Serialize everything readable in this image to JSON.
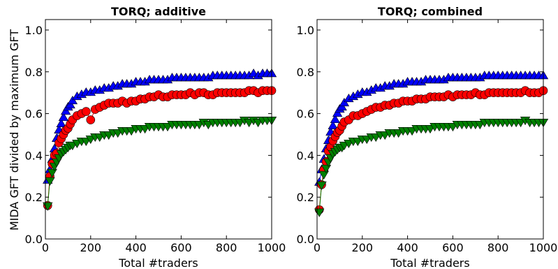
{
  "figure": {
    "ylabel": "MIDA GFT divided by maximum GFT"
  },
  "chart_data": [
    {
      "type": "scatter",
      "title": "TORQ; additive",
      "xlabel": "Total #traders",
      "xlim": [
        0,
        1000
      ],
      "ylim": [
        0.0,
        1.05
      ],
      "xticks": [
        0,
        200,
        400,
        600,
        800,
        1000
      ],
      "yticks": [
        0.0,
        0.2,
        0.4,
        0.6,
        0.8,
        1.0
      ],
      "grid": false,
      "legend": "none",
      "series": [
        {
          "color": "#0000ff",
          "marker": "triangle-up",
          "x": [
            10,
            20,
            30,
            40,
            50,
            60,
            70,
            80,
            90,
            100,
            110,
            120,
            140,
            160,
            180,
            200,
            220,
            240,
            260,
            280,
            300,
            320,
            340,
            360,
            380,
            400,
            420,
            440,
            460,
            480,
            500,
            520,
            540,
            560,
            580,
            600,
            620,
            640,
            660,
            680,
            700,
            720,
            740,
            760,
            780,
            800,
            820,
            840,
            860,
            880,
            900,
            920,
            940,
            960,
            980,
            1000
          ],
          "y": [
            0.28,
            0.33,
            0.38,
            0.43,
            0.48,
            0.52,
            0.55,
            0.58,
            0.61,
            0.63,
            0.64,
            0.66,
            0.68,
            0.69,
            0.7,
            0.7,
            0.71,
            0.71,
            0.72,
            0.72,
            0.73,
            0.73,
            0.74,
            0.74,
            0.74,
            0.75,
            0.75,
            0.75,
            0.76,
            0.76,
            0.76,
            0.76,
            0.76,
            0.77,
            0.77,
            0.77,
            0.77,
            0.77,
            0.77,
            0.77,
            0.77,
            0.77,
            0.78,
            0.78,
            0.78,
            0.78,
            0.78,
            0.78,
            0.78,
            0.78,
            0.78,
            0.79,
            0.78,
            0.79,
            0.79,
            0.79
          ]
        },
        {
          "color": "#ff0000",
          "marker": "circle",
          "x": [
            10,
            20,
            30,
            40,
            50,
            60,
            70,
            80,
            90,
            100,
            110,
            120,
            140,
            160,
            180,
            200,
            220,
            240,
            260,
            280,
            300,
            320,
            340,
            360,
            380,
            400,
            420,
            440,
            460,
            480,
            500,
            520,
            540,
            560,
            580,
            600,
            620,
            640,
            660,
            680,
            700,
            720,
            740,
            760,
            780,
            800,
            820,
            840,
            860,
            880,
            900,
            920,
            940,
            960,
            980,
            1000
          ],
          "y": [
            0.16,
            0.3,
            0.36,
            0.4,
            0.41,
            0.46,
            0.48,
            0.5,
            0.52,
            0.53,
            0.55,
            0.57,
            0.59,
            0.6,
            0.61,
            0.57,
            0.62,
            0.63,
            0.64,
            0.65,
            0.65,
            0.65,
            0.66,
            0.65,
            0.66,
            0.66,
            0.67,
            0.67,
            0.68,
            0.68,
            0.69,
            0.68,
            0.68,
            0.69,
            0.69,
            0.69,
            0.69,
            0.7,
            0.69,
            0.7,
            0.7,
            0.69,
            0.69,
            0.7,
            0.7,
            0.7,
            0.7,
            0.7,
            0.7,
            0.7,
            0.71,
            0.71,
            0.7,
            0.71,
            0.71,
            0.71
          ]
        },
        {
          "color": "#008000",
          "marker": "triangle-down",
          "x": [
            10,
            20,
            30,
            40,
            50,
            60,
            70,
            80,
            90,
            100,
            110,
            120,
            140,
            160,
            180,
            200,
            220,
            240,
            260,
            280,
            300,
            320,
            340,
            360,
            380,
            400,
            420,
            440,
            460,
            480,
            500,
            520,
            540,
            560,
            580,
            600,
            620,
            640,
            660,
            680,
            700,
            720,
            740,
            760,
            780,
            800,
            820,
            840,
            860,
            880,
            900,
            920,
            940,
            960,
            980,
            1000
          ],
          "y": [
            0.16,
            0.28,
            0.32,
            0.35,
            0.37,
            0.39,
            0.41,
            0.42,
            0.43,
            0.44,
            0.45,
            0.45,
            0.46,
            0.47,
            0.47,
            0.48,
            0.49,
            0.49,
            0.5,
            0.5,
            0.51,
            0.51,
            0.52,
            0.52,
            0.52,
            0.53,
            0.53,
            0.53,
            0.54,
            0.54,
            0.54,
            0.54,
            0.54,
            0.55,
            0.55,
            0.55,
            0.55,
            0.55,
            0.55,
            0.55,
            0.56,
            0.55,
            0.56,
            0.56,
            0.56,
            0.56,
            0.56,
            0.56,
            0.56,
            0.57,
            0.56,
            0.57,
            0.56,
            0.57,
            0.57,
            0.57
          ]
        }
      ]
    },
    {
      "type": "scatter",
      "title": "TORQ; combined",
      "xlabel": "Total #traders",
      "xlim": [
        0,
        1000
      ],
      "ylim": [
        0.0,
        1.05
      ],
      "xticks": [
        0,
        200,
        400,
        600,
        800,
        1000
      ],
      "yticks": [
        0.0,
        0.2,
        0.4,
        0.6,
        0.8,
        1.0
      ],
      "grid": false,
      "legend": "none",
      "series": [
        {
          "color": "#0000ff",
          "marker": "triangle-up",
          "x": [
            10,
            20,
            30,
            40,
            50,
            60,
            70,
            80,
            90,
            100,
            110,
            120,
            140,
            160,
            180,
            200,
            220,
            240,
            260,
            280,
            300,
            320,
            340,
            360,
            380,
            400,
            420,
            440,
            460,
            480,
            500,
            520,
            540,
            560,
            580,
            600,
            620,
            640,
            660,
            680,
            700,
            720,
            740,
            760,
            780,
            800,
            820,
            840,
            860,
            880,
            900,
            920,
            940,
            960,
            980,
            1000
          ],
          "y": [
            0.27,
            0.33,
            0.38,
            0.43,
            0.47,
            0.51,
            0.54,
            0.57,
            0.6,
            0.62,
            0.63,
            0.65,
            0.67,
            0.68,
            0.69,
            0.7,
            0.7,
            0.71,
            0.72,
            0.72,
            0.73,
            0.73,
            0.74,
            0.74,
            0.74,
            0.75,
            0.75,
            0.75,
            0.75,
            0.76,
            0.76,
            0.76,
            0.76,
            0.76,
            0.77,
            0.77,
            0.77,
            0.77,
            0.77,
            0.77,
            0.77,
            0.77,
            0.78,
            0.78,
            0.78,
            0.78,
            0.78,
            0.78,
            0.78,
            0.78,
            0.78,
            0.78,
            0.78,
            0.78,
            0.78,
            0.78
          ]
        },
        {
          "color": "#ff0000",
          "marker": "circle",
          "x": [
            10,
            20,
            30,
            40,
            50,
            60,
            70,
            80,
            90,
            100,
            110,
            120,
            140,
            160,
            180,
            200,
            220,
            240,
            260,
            280,
            300,
            320,
            340,
            360,
            380,
            400,
            420,
            440,
            460,
            480,
            500,
            520,
            540,
            560,
            580,
            600,
            620,
            640,
            660,
            680,
            700,
            720,
            740,
            760,
            780,
            800,
            820,
            840,
            860,
            880,
            900,
            920,
            940,
            960,
            980,
            1000
          ],
          "y": [
            0.14,
            0.26,
            0.33,
            0.37,
            0.42,
            0.44,
            0.47,
            0.49,
            0.51,
            0.52,
            0.54,
            0.56,
            0.57,
            0.59,
            0.59,
            0.6,
            0.61,
            0.62,
            0.63,
            0.63,
            0.64,
            0.64,
            0.65,
            0.65,
            0.66,
            0.66,
            0.66,
            0.67,
            0.67,
            0.67,
            0.68,
            0.68,
            0.68,
            0.68,
            0.69,
            0.68,
            0.69,
            0.69,
            0.69,
            0.69,
            0.7,
            0.69,
            0.69,
            0.7,
            0.7,
            0.7,
            0.7,
            0.7,
            0.7,
            0.7,
            0.7,
            0.71,
            0.7,
            0.7,
            0.7,
            0.71
          ]
        },
        {
          "color": "#008000",
          "marker": "triangle-down",
          "x": [
            10,
            20,
            30,
            40,
            50,
            60,
            70,
            80,
            90,
            100,
            110,
            120,
            140,
            160,
            180,
            200,
            220,
            240,
            260,
            280,
            300,
            320,
            340,
            360,
            380,
            400,
            420,
            440,
            460,
            480,
            500,
            520,
            540,
            560,
            580,
            600,
            620,
            640,
            660,
            680,
            700,
            720,
            740,
            760,
            780,
            800,
            820,
            840,
            860,
            880,
            900,
            920,
            940,
            960,
            980,
            1000
          ],
          "y": [
            0.13,
            0.26,
            0.31,
            0.34,
            0.37,
            0.39,
            0.41,
            0.42,
            0.43,
            0.44,
            0.44,
            0.45,
            0.46,
            0.47,
            0.47,
            0.48,
            0.48,
            0.49,
            0.49,
            0.5,
            0.5,
            0.51,
            0.51,
            0.51,
            0.52,
            0.52,
            0.52,
            0.53,
            0.53,
            0.53,
            0.53,
            0.54,
            0.54,
            0.54,
            0.54,
            0.54,
            0.55,
            0.55,
            0.55,
            0.55,
            0.55,
            0.55,
            0.56,
            0.56,
            0.56,
            0.56,
            0.56,
            0.56,
            0.56,
            0.56,
            0.56,
            0.57,
            0.56,
            0.56,
            0.56,
            0.56
          ]
        }
      ]
    }
  ]
}
